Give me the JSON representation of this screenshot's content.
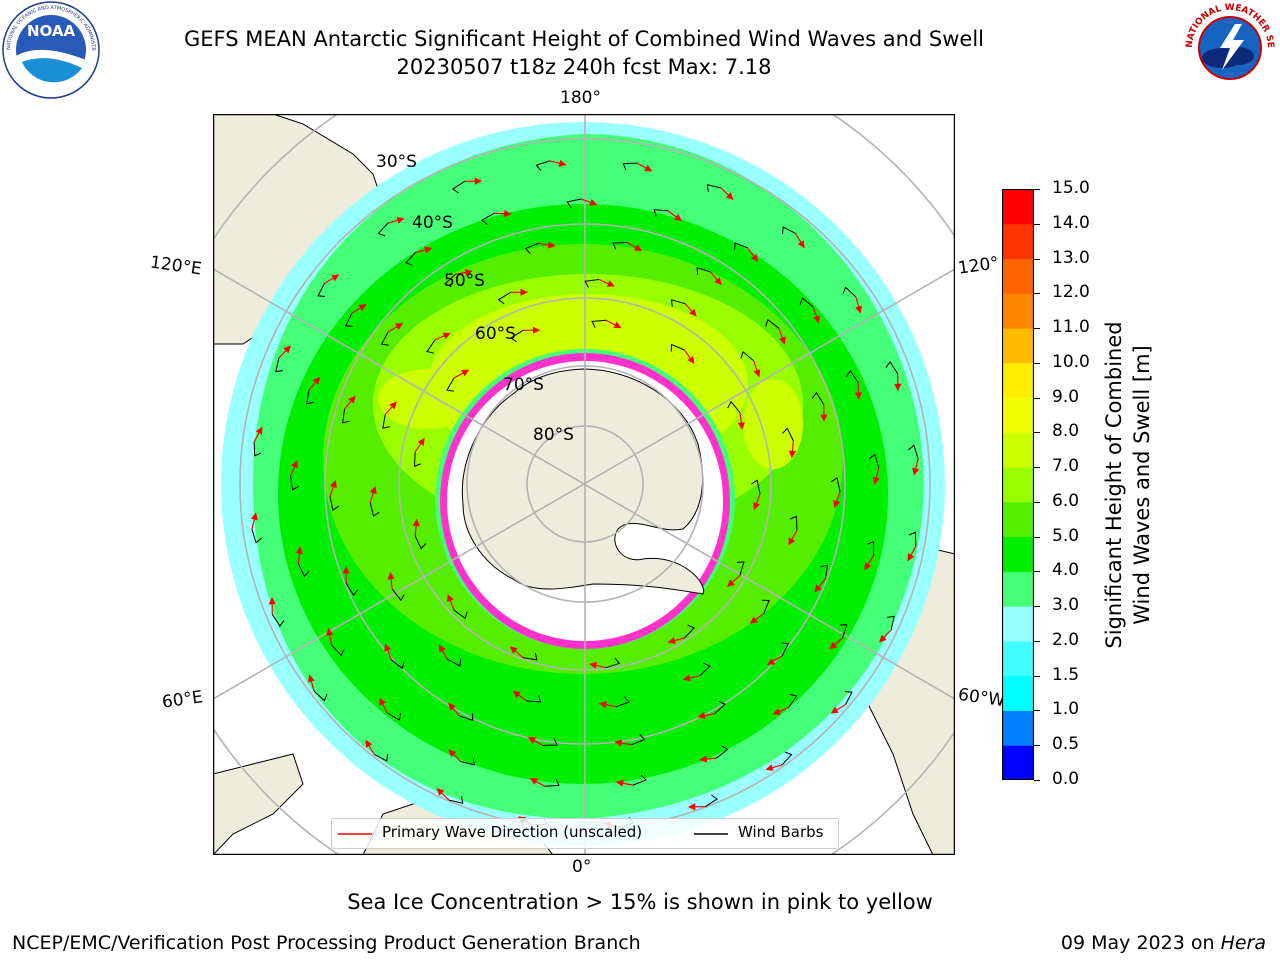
{
  "header": {
    "title_line1": "GEFS MEAN Antarctic Significant Height of Combined Wind Waves and Swell",
    "title_line2": "20230507 t18z 240h fcst   Max: 7.18"
  },
  "logos": {
    "left": {
      "name": "NOAA",
      "ring_text": "NATIONAL OCEANIC AND ATMOSPHERIC ADMINISTRATION · U.S. DEPARTMENT OF COMMERCE"
    },
    "right": {
      "name": "NATIONAL WEATHER SERVICE"
    }
  },
  "map": {
    "projection": "south polar stereographic",
    "longitude_labels": {
      "top": "180°",
      "bottom": "0°",
      "left_upper": "120°E",
      "left_lower": "60°E",
      "right_upper": "120°",
      "right_lower": "60°W"
    },
    "latitude_labels": [
      "30°S",
      "40°S",
      "50°S",
      "60°S",
      "70°S",
      "80°S"
    ],
    "colors": {
      "land": "#eeeddc",
      "ice_shelf": "#ffffff",
      "sea_ice": "#ff33cc",
      "frame": "#000000",
      "grid": "#b3b3b3"
    }
  },
  "legend": {
    "primary_wave_label": "Primary Wave Direction (unscaled)",
    "wind_barbs_label": "Wind Barbs",
    "primary_wave_color": "#ff0000",
    "wind_barbs_color": "#000000"
  },
  "colorbar": {
    "label_line1": "Significant Height of Combined",
    "label_line2": "Wind Waves and Swell [m]",
    "ticks": [
      "0.0",
      "0.5",
      "1.0",
      "1.5",
      "2.0",
      "3.0",
      "4.0",
      "5.0",
      "6.0",
      "7.0",
      "8.0",
      "9.0",
      "10.0",
      "11.0",
      "12.0",
      "13.0",
      "14.0",
      "15.0"
    ],
    "colors": [
      "#0000ff",
      "#0080ff",
      "#00ffff",
      "#40ffff",
      "#99ffff",
      "#44ff77",
      "#00ee00",
      "#55ee00",
      "#99ff00",
      "#ccff00",
      "#eeff00",
      "#ffee00",
      "#ffbb00",
      "#ff8800",
      "#ff6600",
      "#ff3300",
      "#ff0000"
    ]
  },
  "footer": {
    "note": "Sea Ice Concentration > 15% is shown in pink to yellow",
    "branch": "NCEP/EMC/Verification Post Processing Product Generation Branch",
    "date": "09 May 2023 on",
    "host": "Hera"
  }
}
